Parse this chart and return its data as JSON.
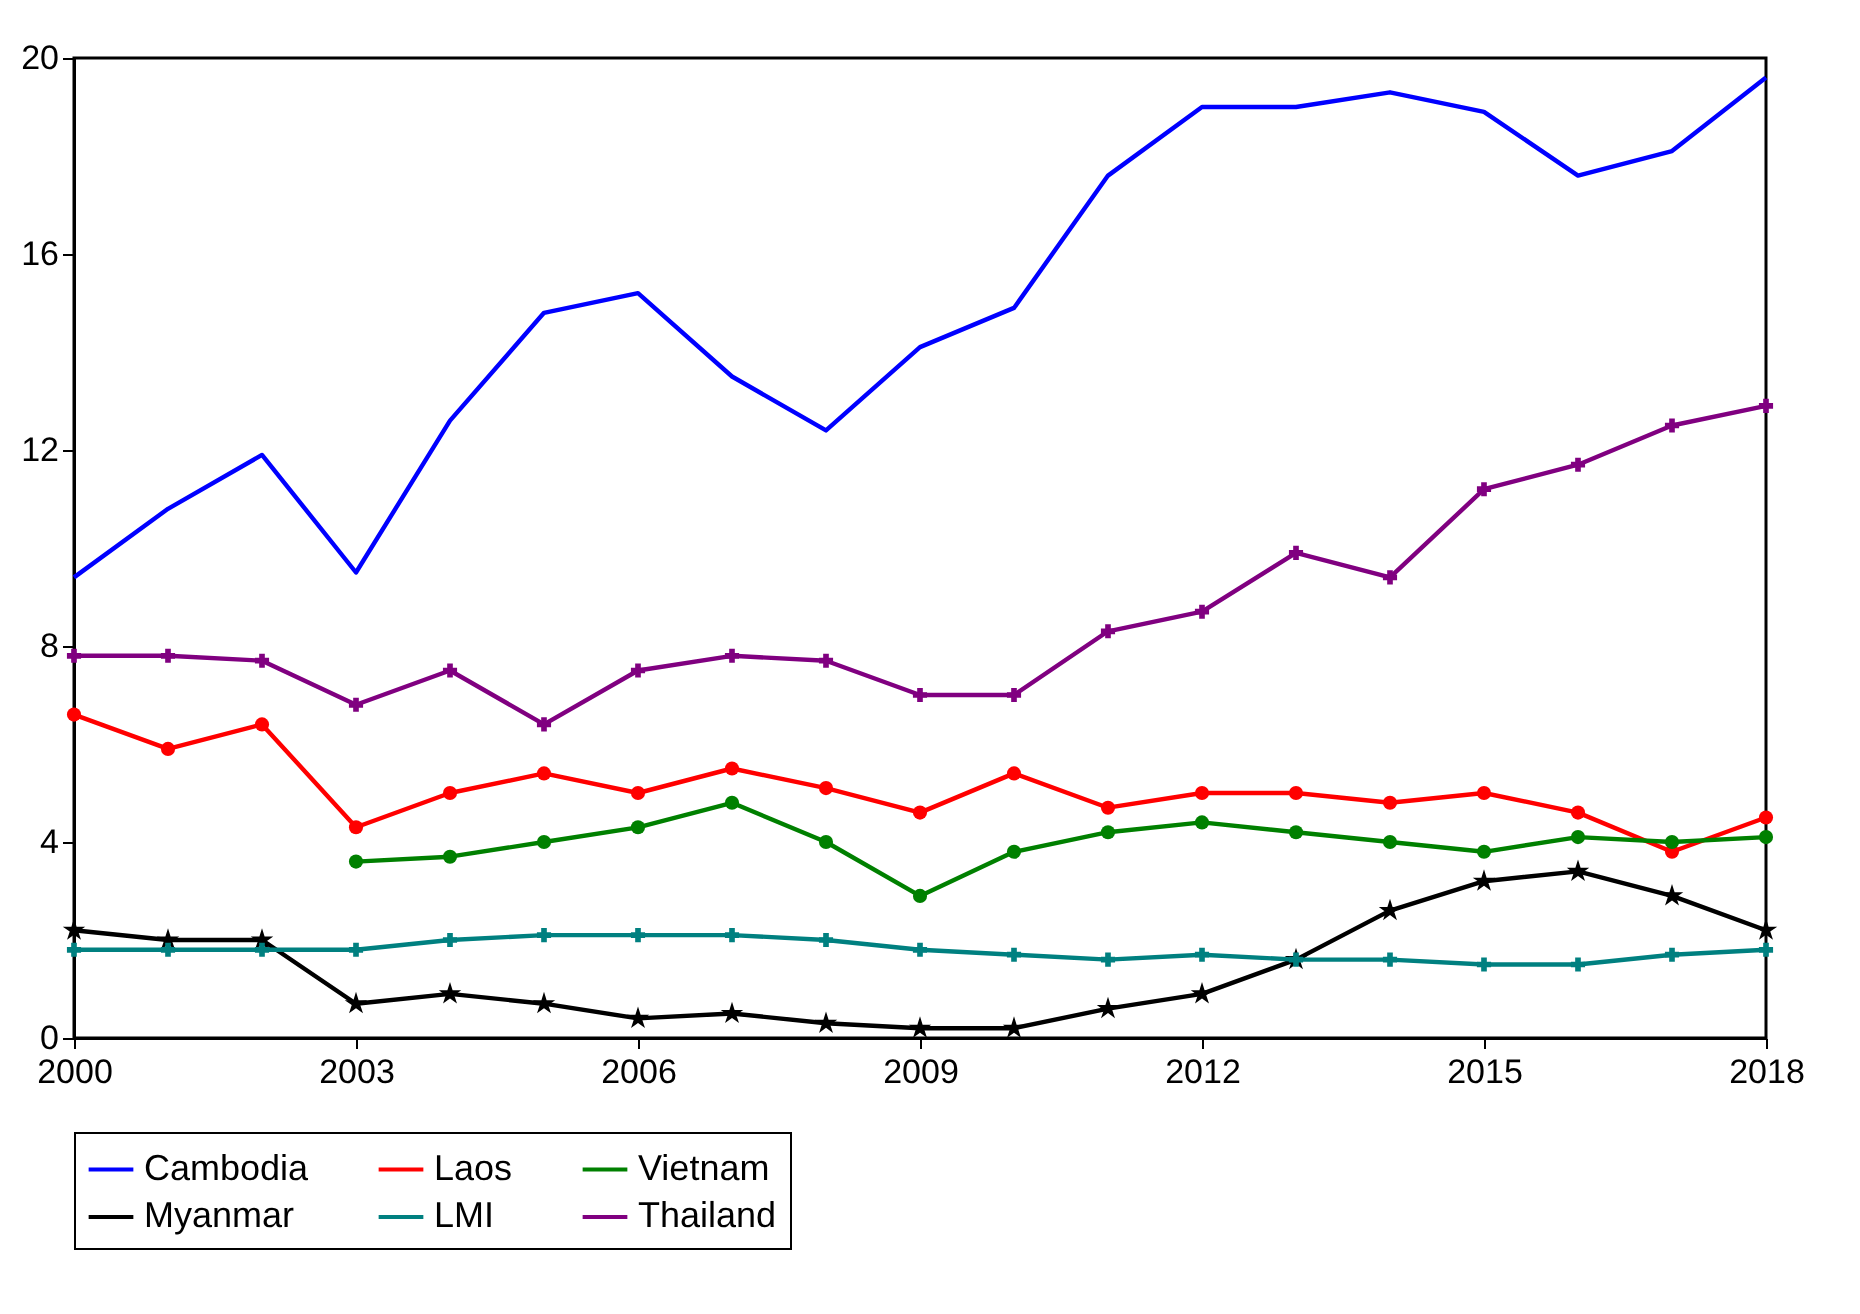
{
  "chart_data": {
    "type": "line",
    "x": [
      2000,
      2001,
      2002,
      2003,
      2004,
      2005,
      2006,
      2007,
      2008,
      2009,
      2010,
      2011,
      2012,
      2013,
      2014,
      2015,
      2016,
      2017,
      2018
    ],
    "xlim": [
      2000,
      2018
    ],
    "xticks": [
      2000,
      2003,
      2006,
      2009,
      2012,
      2015,
      2018
    ],
    "ylim": [
      0,
      20
    ],
    "yticks": [
      0,
      4,
      8,
      12,
      16,
      20
    ],
    "grid": false,
    "legend": "bottom",
    "series": [
      {
        "name": "Cambodia",
        "color": "#0000ff",
        "marker": "none",
        "values": [
          9.4,
          10.8,
          11.9,
          9.5,
          12.6,
          14.8,
          15.2,
          13.5,
          12.4,
          14.1,
          14.9,
          17.6,
          19.0,
          19.0,
          19.3,
          18.9,
          17.6,
          18.1,
          19.6
        ]
      },
      {
        "name": "Laos",
        "color": "#ff0000",
        "marker": "circle",
        "values": [
          6.6,
          5.9,
          6.4,
          4.3,
          5.0,
          5.4,
          5.0,
          5.5,
          5.1,
          4.6,
          5.4,
          4.7,
          5.0,
          5.0,
          4.8,
          5.0,
          4.6,
          3.8,
          4.5
        ]
      },
      {
        "name": "Vietnam",
        "color": "#008000",
        "marker": "circle",
        "values": [
          null,
          null,
          null,
          3.6,
          3.7,
          4.0,
          4.3,
          4.8,
          4.0,
          2.9,
          3.8,
          4.2,
          4.4,
          4.2,
          4.0,
          3.8,
          4.1,
          4.0,
          4.1
        ]
      },
      {
        "name": "Myanmar",
        "color": "#000000",
        "marker": "star",
        "values": [
          2.2,
          2.0,
          2.0,
          0.7,
          0.9,
          0.7,
          0.4,
          0.5,
          0.3,
          0.2,
          0.2,
          0.6,
          0.9,
          1.6,
          2.6,
          3.2,
          3.4,
          2.9,
          2.2
        ]
      },
      {
        "name": "LMI",
        "color": "#008080",
        "marker": "cross",
        "values": [
          1.8,
          1.8,
          1.8,
          1.8,
          2.0,
          2.1,
          2.1,
          2.1,
          2.0,
          1.8,
          1.7,
          1.6,
          1.7,
          1.6,
          1.6,
          1.5,
          1.5,
          1.7,
          1.8
        ]
      },
      {
        "name": "Thailand",
        "color": "#800080",
        "marker": "cross",
        "values": [
          7.8,
          7.8,
          7.7,
          6.8,
          7.5,
          6.4,
          7.5,
          7.8,
          7.7,
          7.0,
          7.0,
          8.3,
          8.7,
          9.9,
          9.4,
          11.2,
          11.7,
          12.5,
          12.9
        ]
      }
    ]
  }
}
